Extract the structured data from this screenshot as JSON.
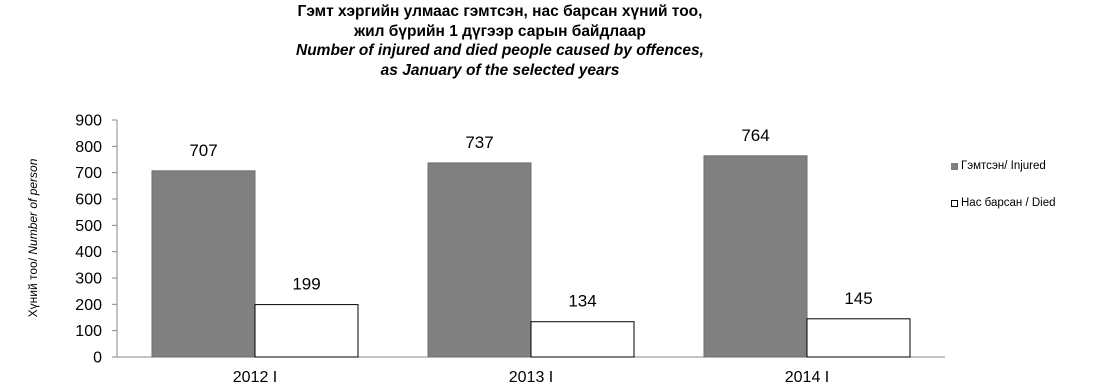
{
  "chart_data": {
    "type": "bar",
    "title_lines": [
      "Гэмт хэргийн улмаас гэмтсэн, нас барсан хүний тоо,",
      "жил бүрийн 1 дүгээр сарын байдлаар"
    ],
    "subtitle_lines": [
      "Number of injured and died people caused by offences,",
      "as January of the selected years"
    ],
    "ylabel_mn": "Хүний тоо/ ",
    "ylabel_en": "Number of person",
    "xlabel": "",
    "categories": [
      "2012 I",
      "2013 I",
      "2014 I"
    ],
    "series": [
      {
        "name": "Гэмтсэн/ Injured",
        "values": [
          707,
          737,
          764
        ],
        "color": "#808080"
      },
      {
        "name": "Нас барсан / Died",
        "values": [
          199,
          134,
          145
        ],
        "color": "#ffffff"
      }
    ],
    "ylim": [
      0,
      900
    ],
    "yticks": [
      0,
      100,
      200,
      300,
      400,
      500,
      600,
      700,
      800,
      900
    ],
    "grid": false,
    "legend_position": "right"
  }
}
